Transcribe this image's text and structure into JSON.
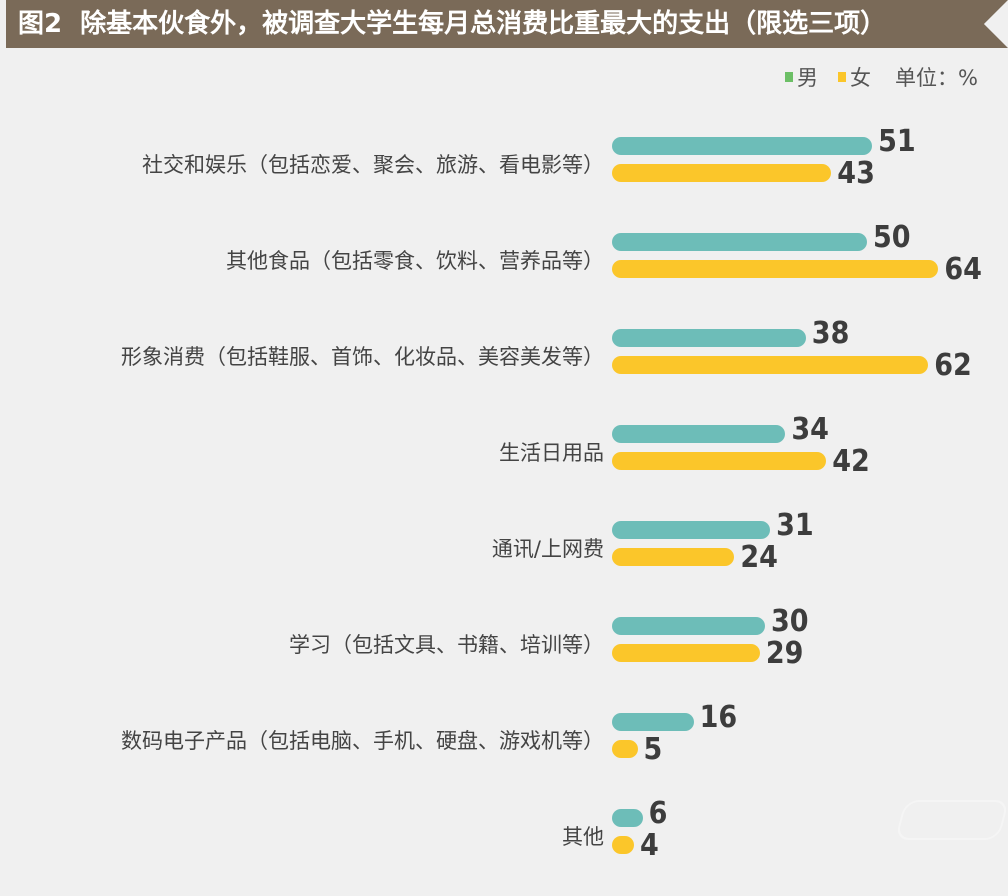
{
  "header": {
    "figure_label": "图2",
    "title": "除基本伙食外，被调查大学生每月总消费比重最大的支出（限选三项）"
  },
  "legend": {
    "items": [
      {
        "label": "男",
        "color": "#6cbf66"
      },
      {
        "label": "女",
        "color": "#fbc62a"
      }
    ],
    "unit": "单位：%"
  },
  "colors": {
    "male_bar": "#6dbdb8",
    "female_bar": "#fbc62a",
    "title_bg": "#7a6a58",
    "background": "#f0f0f0"
  },
  "rows": [
    {
      "label": "社交和娱乐（包括恋爱、聚会、旅游、看电影等）",
      "male": "51",
      "female": "43"
    },
    {
      "label": "其他食品（包括零食、饮料、营养品等）",
      "male": "50",
      "female": "64"
    },
    {
      "label": "形象消费（包括鞋服、首饰、化妆品、美容美发等）",
      "male": "38",
      "female": "62"
    },
    {
      "label": "生活日用品",
      "male": "34",
      "female": "42"
    },
    {
      "label": "通讯/上网费",
      "male": "31",
      "female": "24"
    },
    {
      "label": "学习（包括文具、书籍、培训等）",
      "male": "30",
      "female": "29"
    },
    {
      "label": "数码电子产品（包括电脑、手机、硬盘、游戏机等）",
      "male": "16",
      "female": "5"
    },
    {
      "label": "其他",
      "male": "6",
      "female": "4"
    }
  ],
  "chart_data": {
    "type": "bar",
    "orientation": "horizontal",
    "title": "图2 除基本伙食外，被调查大学生每月总消费比重最大的支出（限选三项）",
    "categories": [
      "社交和娱乐（包括恋爱、聚会、旅游、看电影等）",
      "其他食品（包括零食、饮料、营养品等）",
      "形象消费（包括鞋服、首饰、化妆品、美容美发等）",
      "生活日用品",
      "通讯/上网费",
      "学习（包括文具、书籍、培训等）",
      "数码电子产品（包括电脑、手机、硬盘、游戏机等）",
      "其他"
    ],
    "series": [
      {
        "name": "男",
        "color": "#6dbdb8",
        "values": [
          51,
          50,
          38,
          34,
          31,
          30,
          16,
          6
        ]
      },
      {
        "name": "女",
        "color": "#fbc62a",
        "values": [
          43,
          64,
          62,
          42,
          24,
          29,
          5,
          4
        ]
      }
    ],
    "unit": "%",
    "xlabel": "",
    "ylabel": "",
    "grid": false,
    "data_labels": true,
    "legend_position": "top-right"
  }
}
